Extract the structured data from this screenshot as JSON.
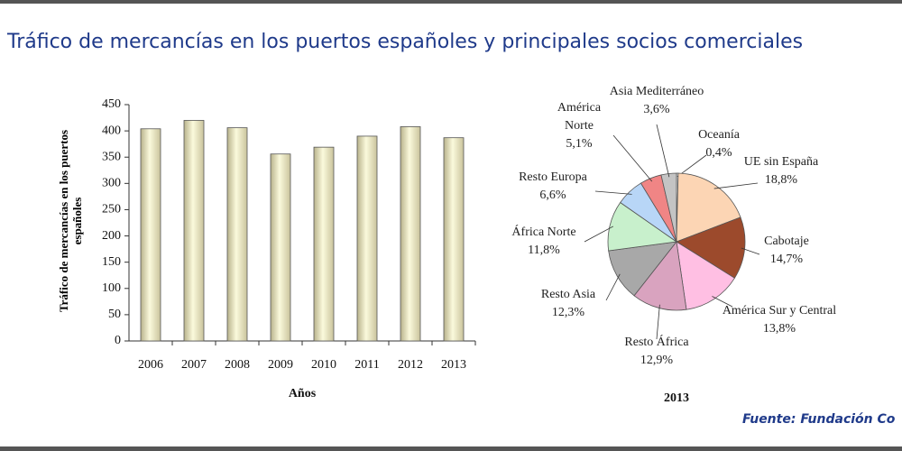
{
  "title": "Tráfico de mercancías en los puertos españoles y principales socios comerciales",
  "source": "Fuente: Fundación Co",
  "chart_data": [
    {
      "type": "bar",
      "y_label": "Tráfico de mercancías en los puertos españoles",
      "x_label": "Años",
      "categories": [
        "2006",
        "2007",
        "2008",
        "2009",
        "2010",
        "2011",
        "2012",
        "2013"
      ],
      "values": [
        404,
        420,
        406,
        356,
        369,
        390,
        408,
        387
      ],
      "color": "#f3f1c4",
      "ylim": [
        0,
        450
      ],
      "yticks": [
        0,
        50,
        100,
        150,
        200,
        250,
        300,
        350,
        400,
        450
      ]
    },
    {
      "type": "pie",
      "title": "2013",
      "categories": [
        "Oceanía",
        "UE sin España",
        "Cabotaje",
        "América Sur y Central",
        "Resto África",
        "Resto Asia",
        "África Norte",
        "Resto Europa",
        "América Norte",
        "Asia Mediterráneo"
      ],
      "values": [
        0.4,
        18.8,
        14.7,
        13.8,
        12.9,
        12.3,
        11.8,
        6.6,
        5.1,
        3.6
      ],
      "value_labels": [
        "0,4%",
        "18,8%",
        "14,7%",
        "13,8%",
        "12,9%",
        "12,3%",
        "11,8%",
        "6,6%",
        "5,1%",
        "3,6%"
      ],
      "colors": [
        "#e8e8e8",
        "#fcd5b4",
        "#9c4a2c",
        "#ffbfe3",
        "#d9a3bf",
        "#a8a8a8",
        "#c8f0cc",
        "#b8d6f7",
        "#f08585",
        "#c4c4c4"
      ]
    }
  ]
}
